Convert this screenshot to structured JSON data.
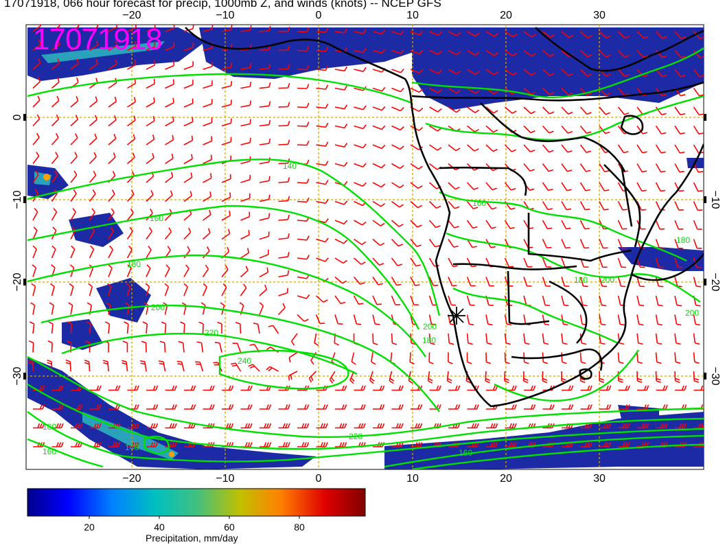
{
  "title": "17071918, 066 hour forecast for precip, 1000mb Z, and winds (knots) -- NCEP GFS",
  "stamp": "17071918",
  "axes": {
    "x_ticks": [
      "−20",
      "−10",
      "0",
      "10",
      "20",
      "30"
    ],
    "y_ticks": [
      "0",
      "−10",
      "−20",
      "−30"
    ]
  },
  "contour_labels": [
    "140",
    "160",
    "180",
    "200",
    "220",
    "240",
    "160",
    "180",
    "200",
    "220",
    "140",
    "160",
    "180",
    "200",
    "180",
    "160",
    "180",
    "200"
  ],
  "colorbar": {
    "title": "Precipitation, mm/day",
    "ticks": [
      "20",
      "40",
      "60",
      "80"
    ],
    "range": [
      0,
      98
    ],
    "colors": [
      "#00008b",
      "#0000ff",
      "#0080ff",
      "#00c0c0",
      "#40c080",
      "#c0c000",
      "#ff8000",
      "#e00000",
      "#800000"
    ]
  },
  "colors": {
    "contour": "#00e000",
    "barb": "#ff0000",
    "land": "#000000",
    "grid": "#d4a000",
    "stamp": "#ff00ff"
  }
}
